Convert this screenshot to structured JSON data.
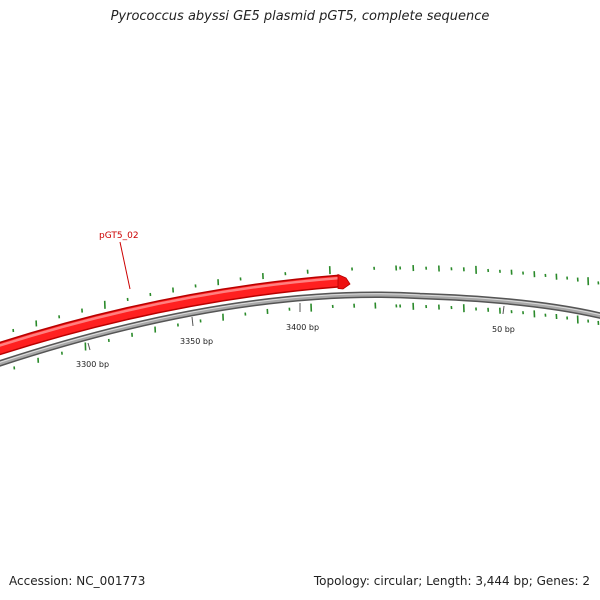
{
  "title": "Pyrococcus abyssi GE5 plasmid pGT5, complete sequence",
  "accession": "Accession: NC_001773",
  "summary": "Topology: circular; Length: 3,444 bp; Genes: 2",
  "colors": {
    "backbone": "#888888",
    "gene": "#ee1111",
    "gc_ticks": "#2a8a2a",
    "label": "#cc0000"
  },
  "gene": {
    "label": "pGT5_02"
  },
  "ticks": [
    {
      "label": "3300 bp"
    },
    {
      "label": "3350 bp"
    },
    {
      "label": "3400 bp"
    },
    {
      "label": "50 bp"
    }
  ]
}
